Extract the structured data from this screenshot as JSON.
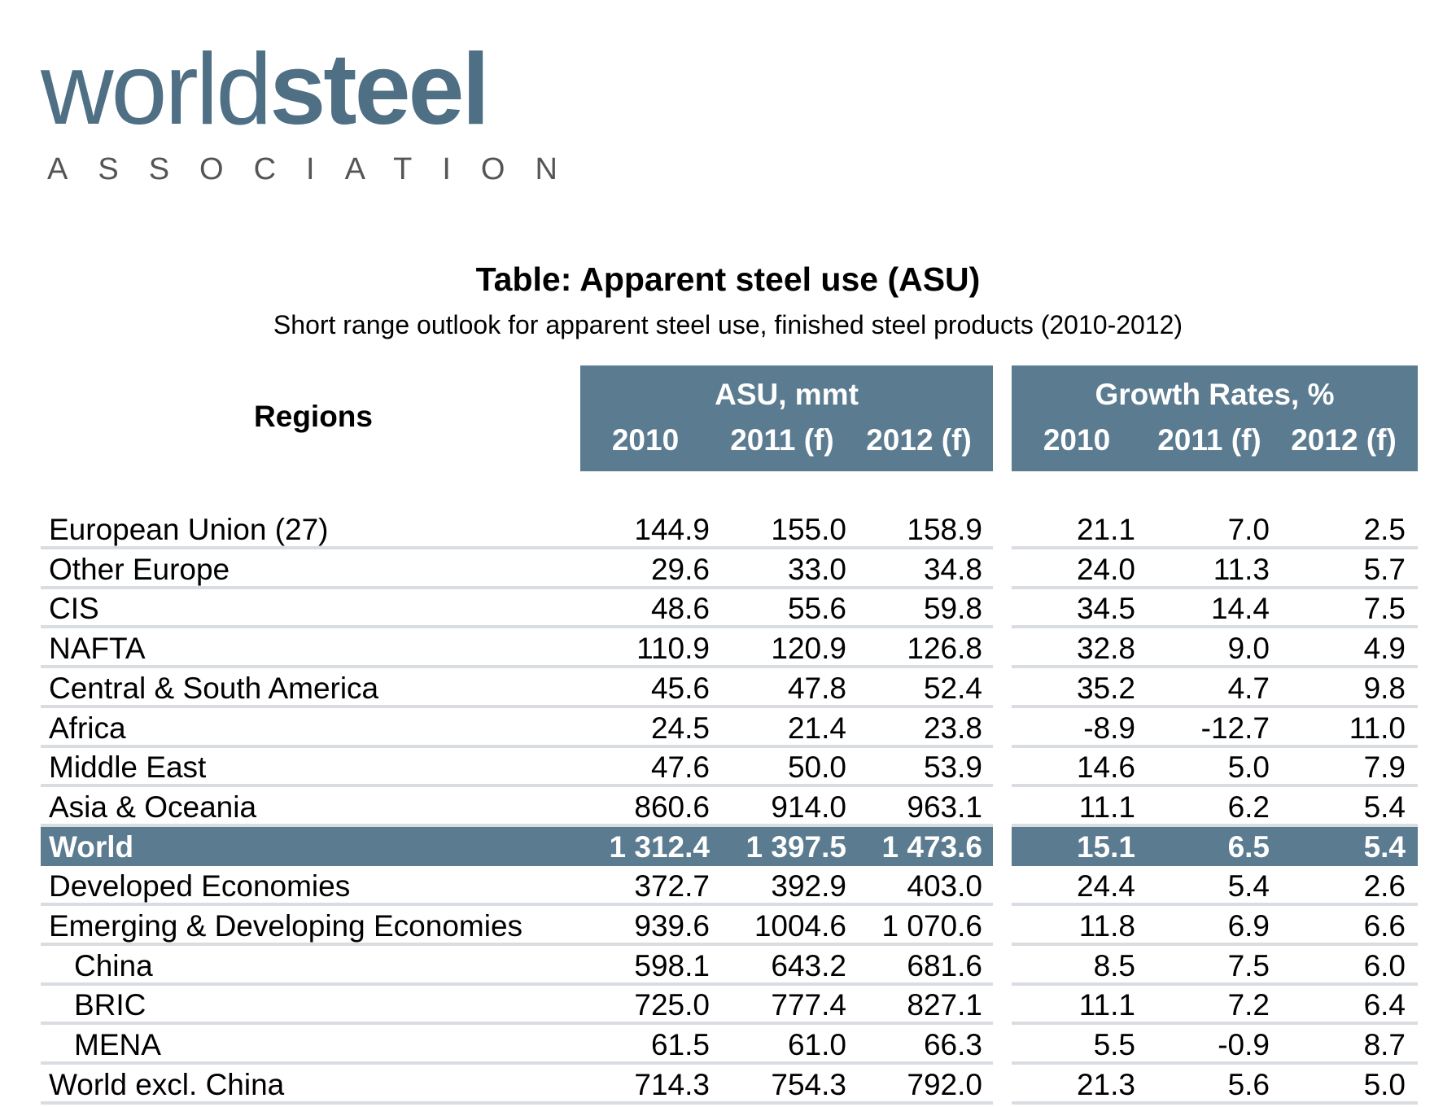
{
  "logo": {
    "word_a": "world",
    "word_b": "steel",
    "subtitle": "ASSOCIATION",
    "color": "#4f6f84"
  },
  "title": "Table: Apparent steel use (ASU)",
  "subtitle": "Short range outlook for apparent steel use, finished steel products (2010-2012)",
  "header": {
    "regions_label": "Regions",
    "asu_group": "ASU, mmt",
    "growth_group": "Growth Rates, %",
    "asu_years": [
      "2010",
      "2011 (f)",
      "2012 (f)"
    ],
    "growth_years": [
      "2010",
      "2011 (f)",
      "2012 (f)"
    ],
    "header_color": "#5a7b90"
  },
  "rows": [
    {
      "name": "European Union (27)",
      "asu": [
        "144.9",
        "155.0",
        "158.9"
      ],
      "growth": [
        "21.1",
        "7.0",
        "2.5"
      ]
    },
    {
      "name": "Other Europe",
      "asu": [
        "29.6",
        "33.0",
        "34.8"
      ],
      "growth": [
        "24.0",
        "11.3",
        "5.7"
      ]
    },
    {
      "name": "CIS",
      "asu": [
        "48.6",
        "55.6",
        "59.8"
      ],
      "growth": [
        "34.5",
        "14.4",
        "7.5"
      ]
    },
    {
      "name": "NAFTA",
      "asu": [
        "110.9",
        "120.9",
        "126.8"
      ],
      "growth": [
        "32.8",
        "9.0",
        "4.9"
      ]
    },
    {
      "name": "Central & South America",
      "asu": [
        "45.6",
        "47.8",
        "52.4"
      ],
      "growth": [
        "35.2",
        "4.7",
        "9.8"
      ]
    },
    {
      "name": "Africa",
      "asu": [
        "24.5",
        "21.4",
        "23.8"
      ],
      "growth": [
        "-8.9",
        "-12.7",
        "11.0"
      ]
    },
    {
      "name": "Middle East",
      "asu": [
        "47.6",
        "50.0",
        "53.9"
      ],
      "growth": [
        "14.6",
        "5.0",
        "7.9"
      ]
    },
    {
      "name": "Asia & Oceania",
      "asu": [
        "860.6",
        "914.0",
        "963.1"
      ],
      "growth": [
        "11.1",
        "6.2",
        "5.4"
      ]
    },
    {
      "name": "World",
      "asu": [
        "1 312.4",
        "1 397.5",
        "1 473.6"
      ],
      "growth": [
        "15.1",
        "6.5",
        "5.4"
      ]
    },
    {
      "name": "Developed Economies",
      "asu": [
        "372.7",
        "392.9",
        "403.0"
      ],
      "growth": [
        "24.4",
        "5.4",
        "2.6"
      ]
    },
    {
      "name": "Emerging & Developing Economies",
      "asu": [
        "939.6",
        "1004.6",
        "1 070.6"
      ],
      "growth": [
        "11.8",
        "6.9",
        "6.6"
      ]
    },
    {
      "name": "China",
      "asu": [
        "598.1",
        "643.2",
        "681.6"
      ],
      "growth": [
        "8.5",
        "7.5",
        "6.0"
      ]
    },
    {
      "name": "BRIC",
      "asu": [
        "725.0",
        "777.4",
        "827.1"
      ],
      "growth": [
        "11.1",
        "7.2",
        "6.4"
      ]
    },
    {
      "name": "MENA",
      "asu": [
        "61.5",
        "61.0",
        "66.3"
      ],
      "growth": [
        "5.5",
        "-0.9",
        "8.7"
      ]
    },
    {
      "name": "World excl. China",
      "asu": [
        "714.3",
        "754.3",
        "792.0"
      ],
      "growth": [
        "21.3",
        "5.6",
        "5.0"
      ]
    }
  ]
}
